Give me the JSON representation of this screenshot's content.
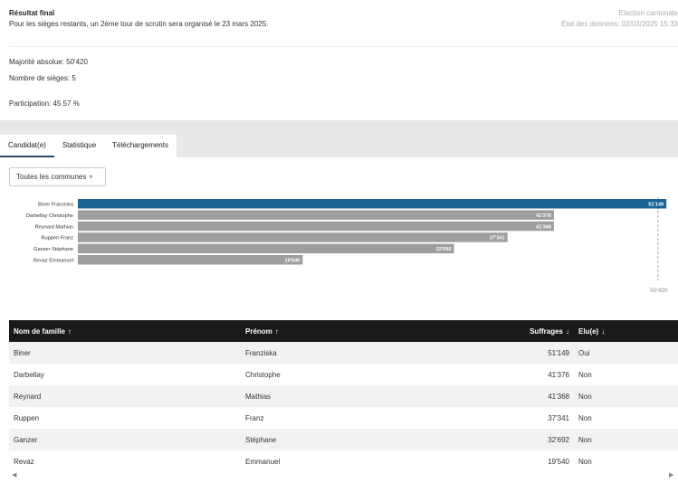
{
  "header": {
    "title": "Résultat final",
    "subtitle": "Pour les sièges restants, un 2ème tour de scrutin sera organisé le 23 mars 2025.",
    "election": "Election cantonale",
    "data_state": "État des données: 02/03/2025 15:33"
  },
  "info": {
    "majority": "Majorité absolue: 50'420",
    "seats": "Nombre de sièges: 5",
    "participation": "Participation: 45.57 %"
  },
  "tabs": [
    "Candidat(e)",
    "Statistique",
    "Téléchargements"
  ],
  "filter": {
    "value": "Toutes les communes",
    "caret": "▾"
  },
  "chart_data": {
    "type": "bar",
    "orientation": "horizontal",
    "categories": [
      "Biner Franziska",
      "Darbellay Christophe",
      "Reynard Mathias",
      "Ruppen Franz",
      "Ganzer Stéphane",
      "Revaz Emmanuel"
    ],
    "values": [
      51149,
      41376,
      41368,
      37341,
      32692,
      19540
    ],
    "value_labels": [
      "51'149",
      "41'376",
      "41'368",
      "37'341",
      "32'692",
      "19'540"
    ],
    "highlight_color": "#1a6496",
    "bar_color": "#9e9e9e",
    "xlim": [
      0,
      52000
    ],
    "reference_line": {
      "value": 50420,
      "label": "50'420"
    }
  },
  "table": {
    "headers": [
      {
        "label": "Nom de famille",
        "arrow": "↑"
      },
      {
        "label": "Prénom",
        "arrow": "↑"
      },
      {
        "label": "Suffrages",
        "arrow": "↓"
      },
      {
        "label": "Elu(e)",
        "arrow": "↓"
      }
    ],
    "rows": [
      [
        "Biner",
        "Franziska",
        "51'149",
        "Oui"
      ],
      [
        "Darbellay",
        "Christophe",
        "41'376",
        "Non"
      ],
      [
        "Reynard",
        "Mathias",
        "41'368",
        "Non"
      ],
      [
        "Ruppen",
        "Franz",
        "37'341",
        "Non"
      ],
      [
        "Ganzer",
        "Stéphane",
        "32'692",
        "Non"
      ],
      [
        "Revaz",
        "Emmanuel",
        "19'540",
        "Non"
      ]
    ]
  },
  "scroll": {
    "left": "◀",
    "right": "▶"
  }
}
